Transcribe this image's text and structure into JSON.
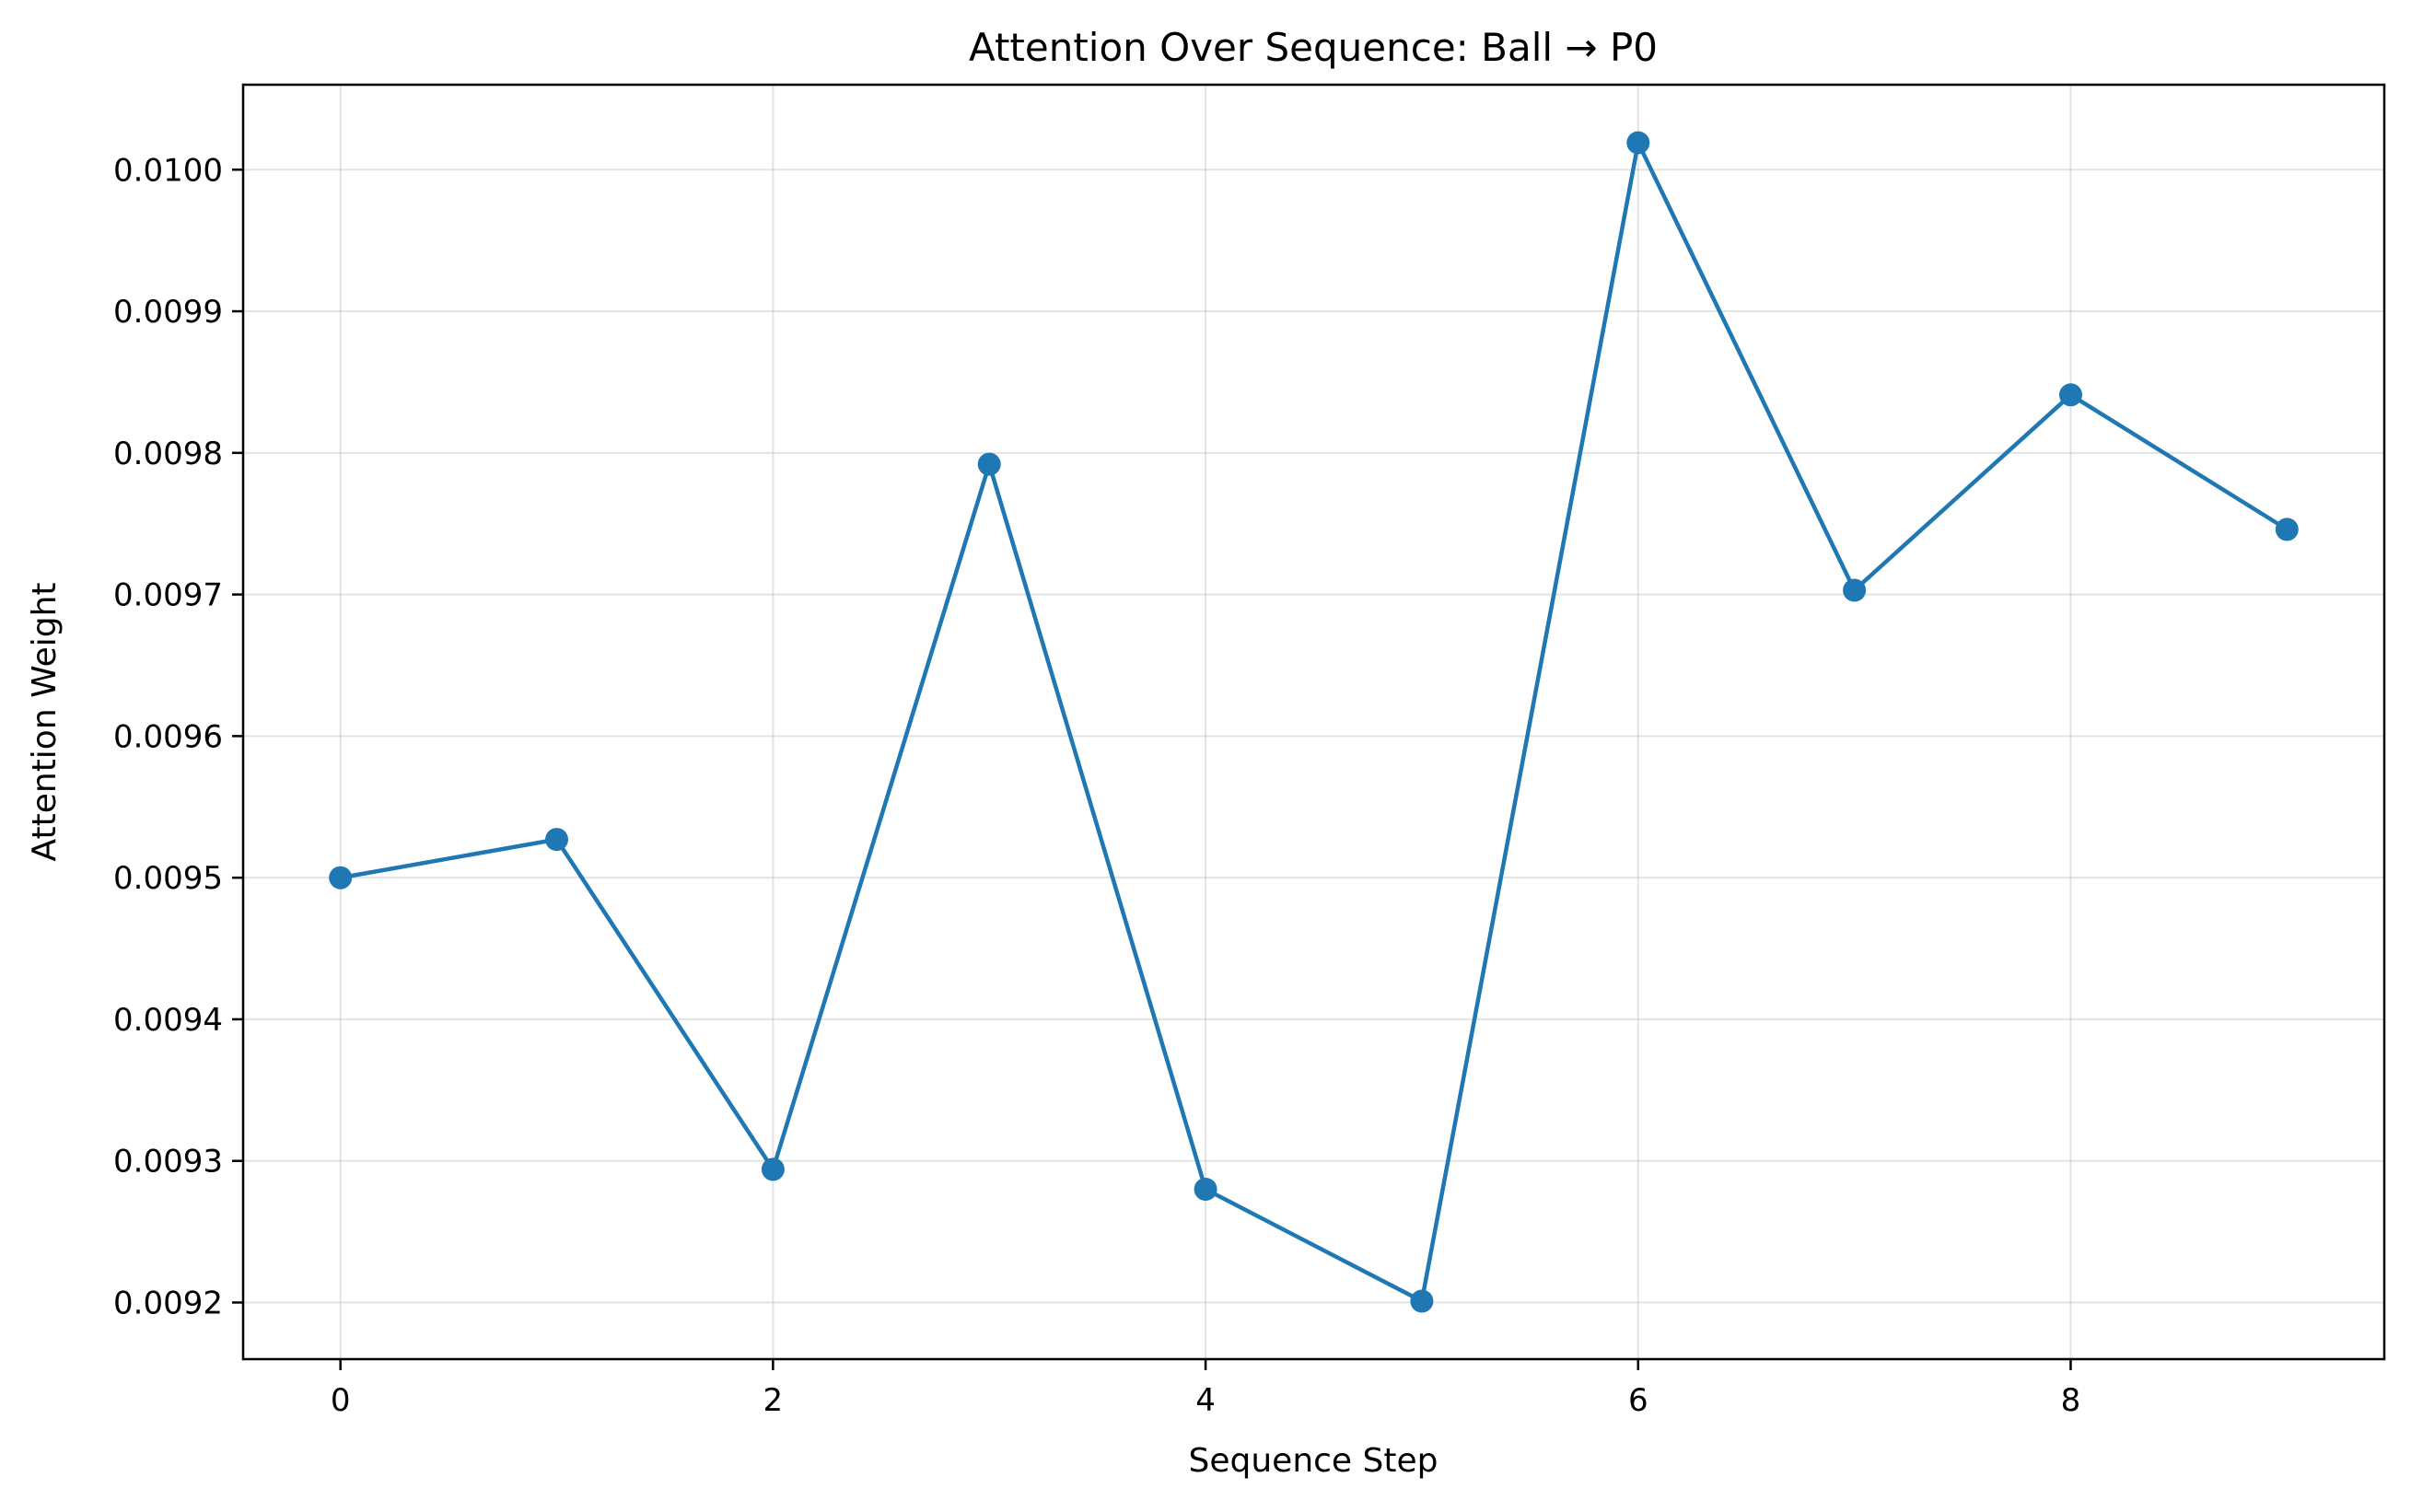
{
  "chart_data": {
    "type": "line",
    "title": "Attention Over Sequence: Ball → P0",
    "xlabel": "Sequence Step",
    "ylabel": "Attention Weight",
    "x": [
      0,
      1,
      2,
      3,
      4,
      5,
      6,
      7,
      8,
      9
    ],
    "series": [
      {
        "values": [
          0.0095,
          0.009527,
          0.009294,
          0.009792,
          0.00928,
          0.009201,
          0.010019,
          0.009703,
          0.009841,
          0.009746
        ],
        "color": "#1f77b4",
        "marker": "circle"
      }
    ],
    "xlim": [
      -0.45,
      9.45
    ],
    "ylim": [
      0.00916,
      0.01006
    ],
    "xticks": [
      0,
      2,
      4,
      6,
      8
    ],
    "xtick_labels": [
      "0",
      "2",
      "4",
      "6",
      "8"
    ],
    "yticks": [
      0.0092,
      0.0093,
      0.0094,
      0.0095,
      0.0096,
      0.0097,
      0.0098,
      0.0099,
      0.01
    ],
    "ytick_labels": [
      "0.0092",
      "0.0093",
      "0.0094",
      "0.0095",
      "0.0096",
      "0.0097",
      "0.0098",
      "0.0099",
      "0.0100"
    ],
    "grid": true,
    "legend": false
  }
}
